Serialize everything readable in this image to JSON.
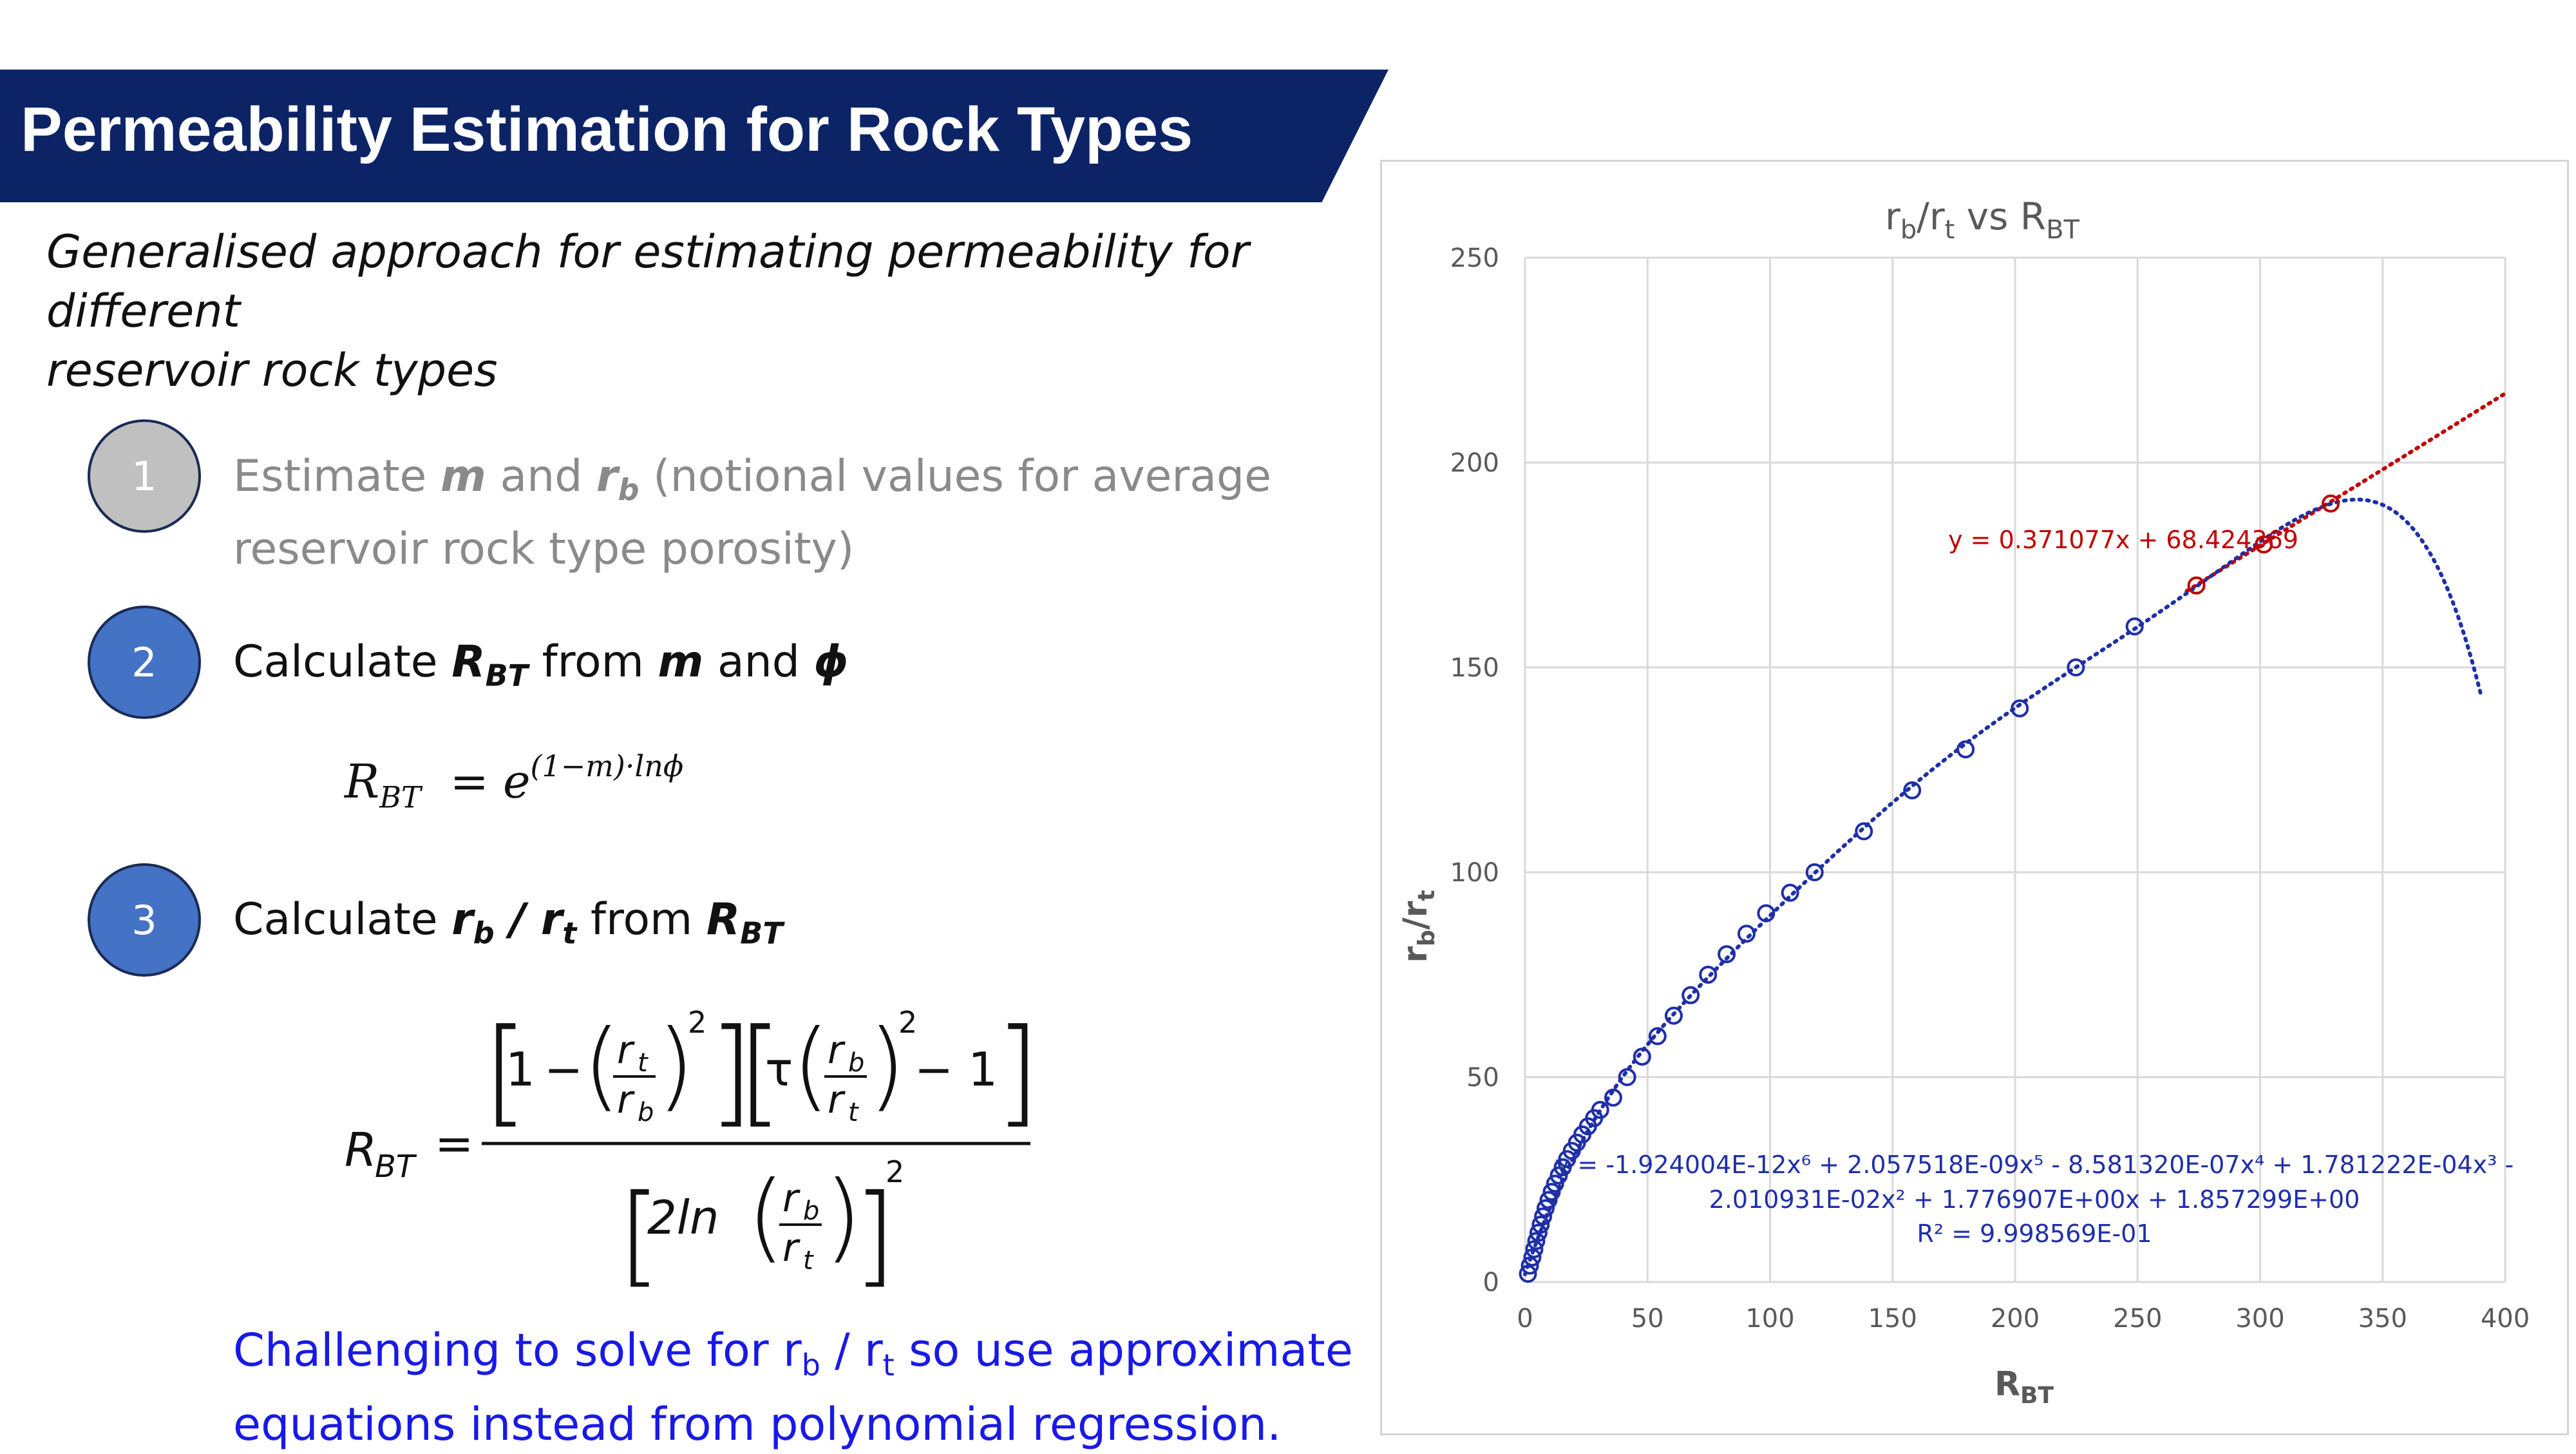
{
  "header": {
    "title": "Permeability Estimation for Rock Types"
  },
  "subtitle": {
    "line1": "Generalised approach for estimating permeability for different",
    "line2": "reservoir rock types"
  },
  "steps": [
    {
      "number": "1",
      "line1_a": "Estimate ",
      "line1_m": "m",
      "line1_b": " and ",
      "line1_r": "r",
      "line1_sub": "b",
      "line1_c": " (notional values for average",
      "line2": "reservoir rock type porosity)"
    },
    {
      "number": "2",
      "text_a": "Calculate ",
      "text_R": "R",
      "text_Rsub": "BT",
      "text_b": " from ",
      "text_m": "m",
      "text_c": " and ",
      "text_phi": "ϕ"
    },
    {
      "number": "3",
      "text_a": "Calculate ",
      "text_r1": "r",
      "text_r1sub": "b",
      "text_slash": " / ",
      "text_r2": "r",
      "text_r2sub": "t",
      "text_b": " from ",
      "text_R": "R",
      "text_Rsub": "BT"
    }
  ],
  "equation1": {
    "lhs": "R",
    "lhs_sub": "BT",
    "equals": "=",
    "base": "e",
    "exponent": "(1−m)·lnϕ"
  },
  "equation2": {
    "lhs": "R",
    "lhs_sub": "BT",
    "equals": "=",
    "one": "1",
    "minus": "−",
    "tau": "τ",
    "minus_one": "− 1",
    "r": "r",
    "t": "t",
    "b": "b",
    "sq": "2",
    "two_ln": "2ln"
  },
  "note": {
    "line1_a": "Challenging to solve for r",
    "line1_b_sub": "b",
    "line1_c": " / r",
    "line1_d_sub": "t",
    "line1_e": " so use approximate",
    "line2": "equations instead from polynomial regression."
  },
  "chart_data": {
    "type": "scatter",
    "title": {
      "main_a": "r",
      "main_a_sub": "b",
      "main_b": "/r",
      "main_b_sub": "t",
      "main_c": " vs R",
      "main_c_sub": "BT"
    },
    "xlabel": {
      "main": "R",
      "sub": "BT"
    },
    "ylabel": {
      "main": "r",
      "sub_b": "b",
      "mid": "/r",
      "sub_t": "t"
    },
    "xlim": [
      0,
      400
    ],
    "ylim": [
      0,
      250
    ],
    "x_ticks": [
      "0",
      "50",
      "100",
      "150",
      "200",
      "250",
      "300",
      "350",
      "400"
    ],
    "y_ticks": [
      "0",
      "50",
      "100",
      "150",
      "200",
      "250"
    ],
    "grid": true,
    "series": [
      {
        "color": "#1f2fa8",
        "x": [
          1.2,
          2.0,
          3.0,
          3.8,
          4.6,
          5.5,
          6.4,
          7.4,
          8.4,
          9.6,
          10.9,
          12.3,
          13.8,
          15.4,
          17.2,
          19.1,
          21.2,
          23.4,
          25.7,
          28.2,
          30.7,
          36.0,
          41.7,
          47.8,
          54.1,
          60.7,
          67.6,
          74.7,
          82.3,
          90.4,
          98.4,
          108.2,
          118.2,
          138.3,
          158.0,
          179.8,
          201.9,
          224.8,
          248.8
        ],
        "y": [
          2,
          4,
          6,
          8,
          10,
          12,
          14,
          16,
          18,
          20,
          22,
          24,
          26,
          28,
          30,
          32,
          34,
          36,
          38,
          40,
          42,
          45,
          50,
          55,
          60,
          65,
          70,
          75,
          80,
          85,
          90,
          95,
          100,
          110,
          120,
          130,
          140,
          150,
          160
        ]
      },
      {
        "color": "#c00000",
        "x": [
          274.0,
          301.5,
          328.8
        ],
        "y": [
          170,
          180,
          190
        ]
      }
    ],
    "trendlines": [
      {
        "type": "linear",
        "color": "#c00000",
        "equation": "y = 0.371077x + 68.424369",
        "slope": 0.371077,
        "intercept": 68.424369,
        "x_range": [
          270,
          400
        ]
      },
      {
        "type": "polynomial",
        "order": 6,
        "color": "#1f2fa8",
        "equation_line1": "y = -1.924004E-12x⁶ + 2.057518E-09x⁵ - 8.581320E-07x⁴ + 1.781222E-04x³ -",
        "equation_line2": "2.010931E-02x² + 1.776907E+00x + 1.857299E+00",
        "r2_label": "R² = 9.998569E-01",
        "coefficients": [
          1.857299,
          1.776907,
          -0.02010931,
          0.0001781222,
          -8.58132e-07,
          2.057518e-09,
          -1.924004e-12
        ],
        "x_range": [
          0,
          390
        ]
      }
    ]
  }
}
